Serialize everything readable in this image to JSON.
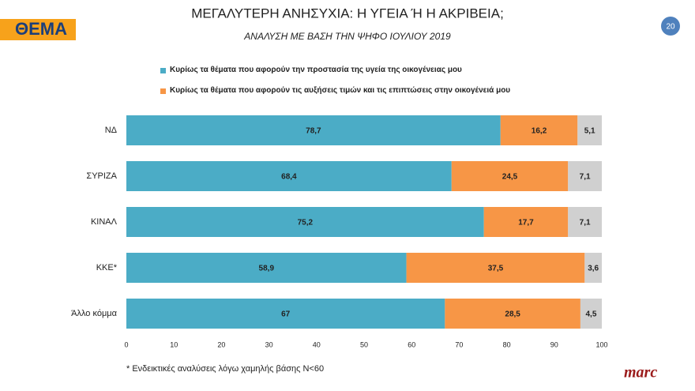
{
  "logo": "ΘΕΜΑ",
  "page_number": 20,
  "footnote": "* Ενδεικτικές αναλύσεις λόγω χαμηλής βάσης Ν<60",
  "brand": "marc",
  "chart_data": {
    "type": "stacked-barh",
    "title": "ΜΕΓΑΛΥΤΕΡΗ ΑΝΗΣΥΧΙΑ: Η ΥΓΕΙΑ Ή Η ΑΚΡΙΒΕΙΑ;",
    "subtitle": "ΑΝΑΛΥΣΗ ΜΕ ΒΑΣΗ ΤΗΝ ΨΗΦΟ ΙΟΥΛΙΟΥ 2019",
    "categories": [
      "ΝΔ",
      "ΣΥΡΙΖΑ",
      "ΚΙΝΑΛ",
      "ΚΚΕ*",
      "Άλλο κόμμα"
    ],
    "series": [
      {
        "name": "Κυρίως τα θέματα που αφορούν την προστασία της υγεία της οικογένειας μου",
        "color": "#4bacc6",
        "values": [
          78.7,
          68.4,
          75.2,
          58.9,
          67
        ],
        "value_labels": [
          "78,7",
          "68,4",
          "75,2",
          "58,9",
          "67"
        ]
      },
      {
        "name": "Κυρίως τα θέματα που αφορούν τις αυξήσεις τιμών και τις επιπτώσεις στην οικογένειά μου",
        "color": "#f79646",
        "values": [
          16.2,
          24.5,
          17.7,
          37.5,
          28.5
        ],
        "value_labels": [
          "16,2",
          "24,5",
          "17,7",
          "37,5",
          "28,5"
        ]
      },
      {
        "color": "#d0d0d0",
        "values": [
          5.1,
          7.1,
          7.1,
          3.6,
          4.5
        ],
        "value_labels": [
          "5,1",
          "7,1",
          "7,1",
          "3,6",
          "4,5"
        ]
      }
    ],
    "xlim": [
      0,
      100
    ],
    "xticks": [
      0,
      10,
      20,
      30,
      40,
      50,
      60,
      70,
      80,
      90,
      100
    ],
    "grid": false
  }
}
